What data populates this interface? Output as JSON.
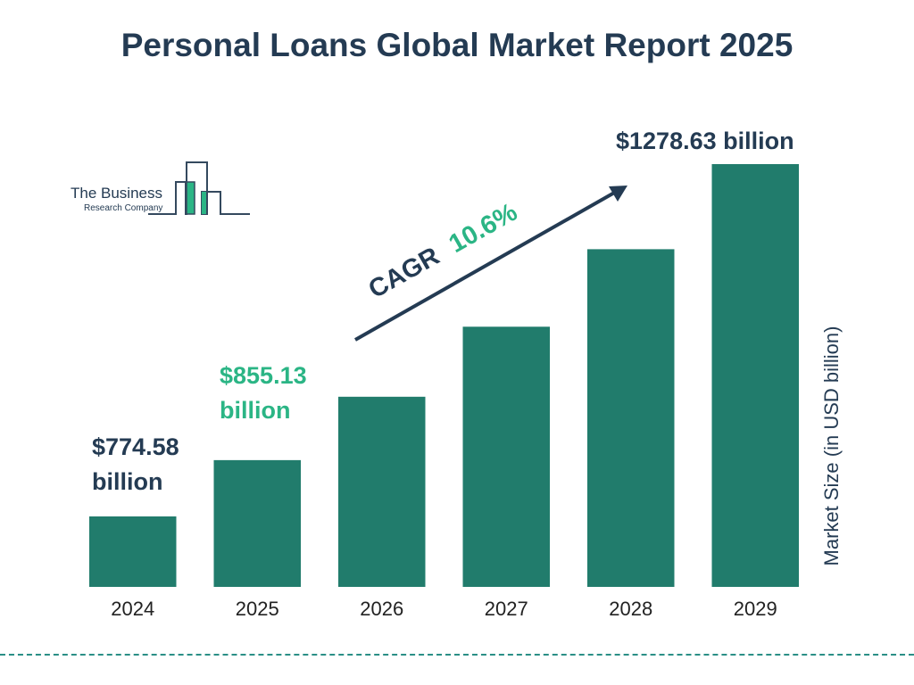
{
  "title": "Personal Loans Global Market Report 2025",
  "logo": {
    "line1": "The Business",
    "line2": "Research Company"
  },
  "colors": {
    "bar": "#217c6c",
    "dark": "#243b53",
    "accent": "#2bb585"
  },
  "chart_data": {
    "type": "bar",
    "categories": [
      "2024",
      "2025",
      "2026",
      "2027",
      "2028",
      "2029"
    ],
    "values": [
      774.58,
      855.13,
      945.8,
      1046.0,
      1156.9,
      1278.63
    ],
    "ylabel": "Market Size (in USD billion)",
    "data_labels": [
      {
        "index": 0,
        "text": "$774.58 billion"
      },
      {
        "index": 1,
        "text": "$855.13 billion"
      },
      {
        "index": 5,
        "text": "$1278.63 billion"
      }
    ],
    "annotation": {
      "prefix": "CAGR",
      "value": "10.6%"
    },
    "grid": false
  }
}
